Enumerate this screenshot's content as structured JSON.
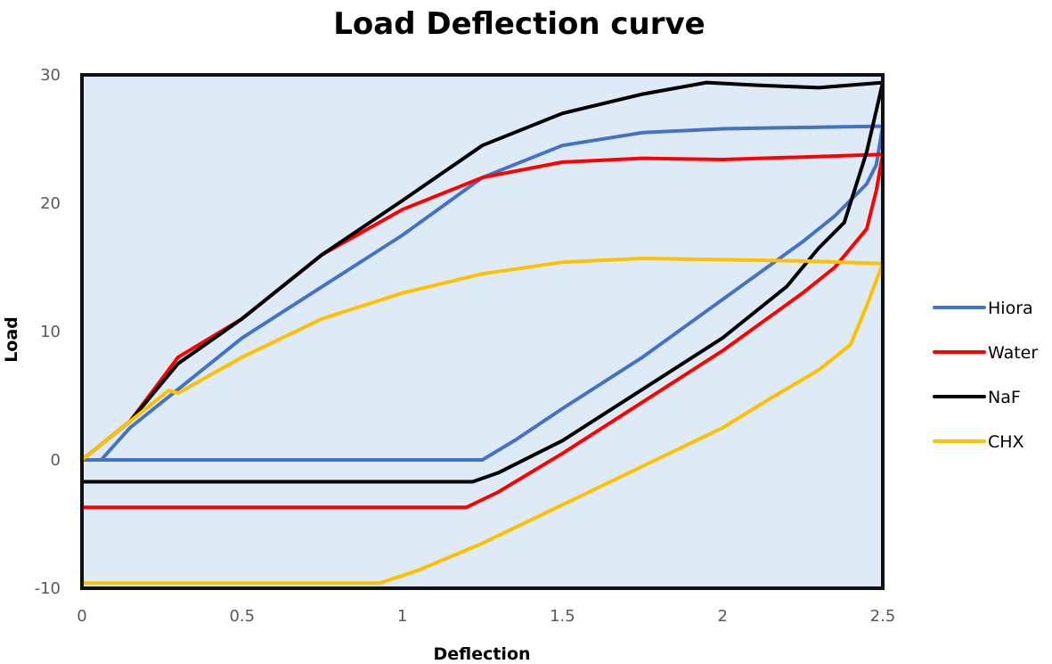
{
  "chart_data": {
    "type": "line",
    "title": "Load Deflection curve",
    "xlabel": "Deflection",
    "ylabel": "Load",
    "xlim": [
      0,
      2.5
    ],
    "ylim": [
      -10,
      30
    ],
    "x_ticks": [
      0,
      0.5,
      1,
      1.5,
      2,
      2.5
    ],
    "x_tick_labels": [
      "0",
      "0.5",
      "1",
      "1.5",
      "2",
      "2.5"
    ],
    "y_ticks": [
      -10,
      0,
      10,
      20,
      30
    ],
    "y_tick_labels": [
      "-10",
      "0",
      "10",
      "20",
      "30"
    ],
    "grid": false,
    "plot_background": "#deebf7",
    "legend_position": "right",
    "series": [
      {
        "name": "Hiora",
        "color": "#4472c4",
        "points": [
          [
            0,
            0
          ],
          [
            0.06,
            0
          ],
          [
            0.15,
            2.5
          ],
          [
            0.3,
            5.5
          ],
          [
            0.5,
            9.5
          ],
          [
            0.75,
            13.5
          ],
          [
            1.0,
            17.5
          ],
          [
            1.25,
            22
          ],
          [
            1.5,
            24.5
          ],
          [
            1.75,
            25.5
          ],
          [
            2.0,
            25.8
          ],
          [
            2.25,
            25.9
          ],
          [
            2.5,
            26
          ],
          [
            2.48,
            23
          ],
          [
            2.45,
            21.5
          ],
          [
            2.35,
            19
          ],
          [
            2.25,
            17
          ],
          [
            2.0,
            12.5
          ],
          [
            1.75,
            8
          ],
          [
            1.5,
            4
          ],
          [
            1.35,
            1.5
          ],
          [
            1.25,
            0
          ],
          [
            0.75,
            0
          ],
          [
            0,
            0
          ]
        ]
      },
      {
        "name": "Water",
        "color": "#ff0000",
        "points": [
          [
            0,
            0
          ],
          [
            0.15,
            3
          ],
          [
            0.3,
            8
          ],
          [
            0.5,
            11
          ],
          [
            0.75,
            16
          ],
          [
            1.0,
            19.5
          ],
          [
            1.25,
            22
          ],
          [
            1.5,
            23.2
          ],
          [
            1.75,
            23.5
          ],
          [
            2.0,
            23.4
          ],
          [
            2.25,
            23.6
          ],
          [
            2.5,
            23.8
          ],
          [
            2.48,
            21
          ],
          [
            2.45,
            18
          ],
          [
            2.35,
            15
          ],
          [
            2.25,
            13
          ],
          [
            2.0,
            8.5
          ],
          [
            1.75,
            4.5
          ],
          [
            1.5,
            0.5
          ],
          [
            1.3,
            -2.5
          ],
          [
            1.2,
            -3.7
          ],
          [
            0.6,
            -3.7
          ],
          [
            0,
            -3.7
          ]
        ]
      },
      {
        "name": "NaF",
        "color": "#000000",
        "points": [
          [
            0,
            0
          ],
          [
            0.15,
            3
          ],
          [
            0.3,
            7.5
          ],
          [
            0.5,
            11
          ],
          [
            0.75,
            16
          ],
          [
            1.0,
            20.2
          ],
          [
            1.25,
            24.5
          ],
          [
            1.5,
            27
          ],
          [
            1.75,
            28.5
          ],
          [
            1.95,
            29.4
          ],
          [
            2.1,
            29.2
          ],
          [
            2.3,
            29
          ],
          [
            2.5,
            29.4
          ],
          [
            2.45,
            24
          ],
          [
            2.38,
            18.5
          ],
          [
            2.3,
            16.5
          ],
          [
            2.2,
            13.5
          ],
          [
            2.0,
            9.5
          ],
          [
            1.75,
            5.5
          ],
          [
            1.5,
            1.5
          ],
          [
            1.3,
            -1
          ],
          [
            1.22,
            -1.7
          ],
          [
            0.6,
            -1.7
          ],
          [
            0,
            -1.7
          ]
        ]
      },
      {
        "name": "CHX",
        "color": "#ffc000",
        "points": [
          [
            0,
            0
          ],
          [
            0.15,
            3
          ],
          [
            0.27,
            5.4
          ],
          [
            0.3,
            5.2
          ],
          [
            0.5,
            8
          ],
          [
            0.75,
            11
          ],
          [
            1.0,
            13
          ],
          [
            1.25,
            14.5
          ],
          [
            1.5,
            15.4
          ],
          [
            1.75,
            15.7
          ],
          [
            2.0,
            15.6
          ],
          [
            2.25,
            15.5
          ],
          [
            2.5,
            15.3
          ],
          [
            2.45,
            12
          ],
          [
            2.4,
            9
          ],
          [
            2.3,
            7
          ],
          [
            2.15,
            4.8
          ],
          [
            2.0,
            2.5
          ],
          [
            1.75,
            -0.5
          ],
          [
            1.5,
            -3.5
          ],
          [
            1.25,
            -6.5
          ],
          [
            1.05,
            -8.6
          ],
          [
            0.93,
            -9.6
          ],
          [
            0.5,
            -9.6
          ],
          [
            0,
            -9.6
          ]
        ]
      }
    ]
  }
}
